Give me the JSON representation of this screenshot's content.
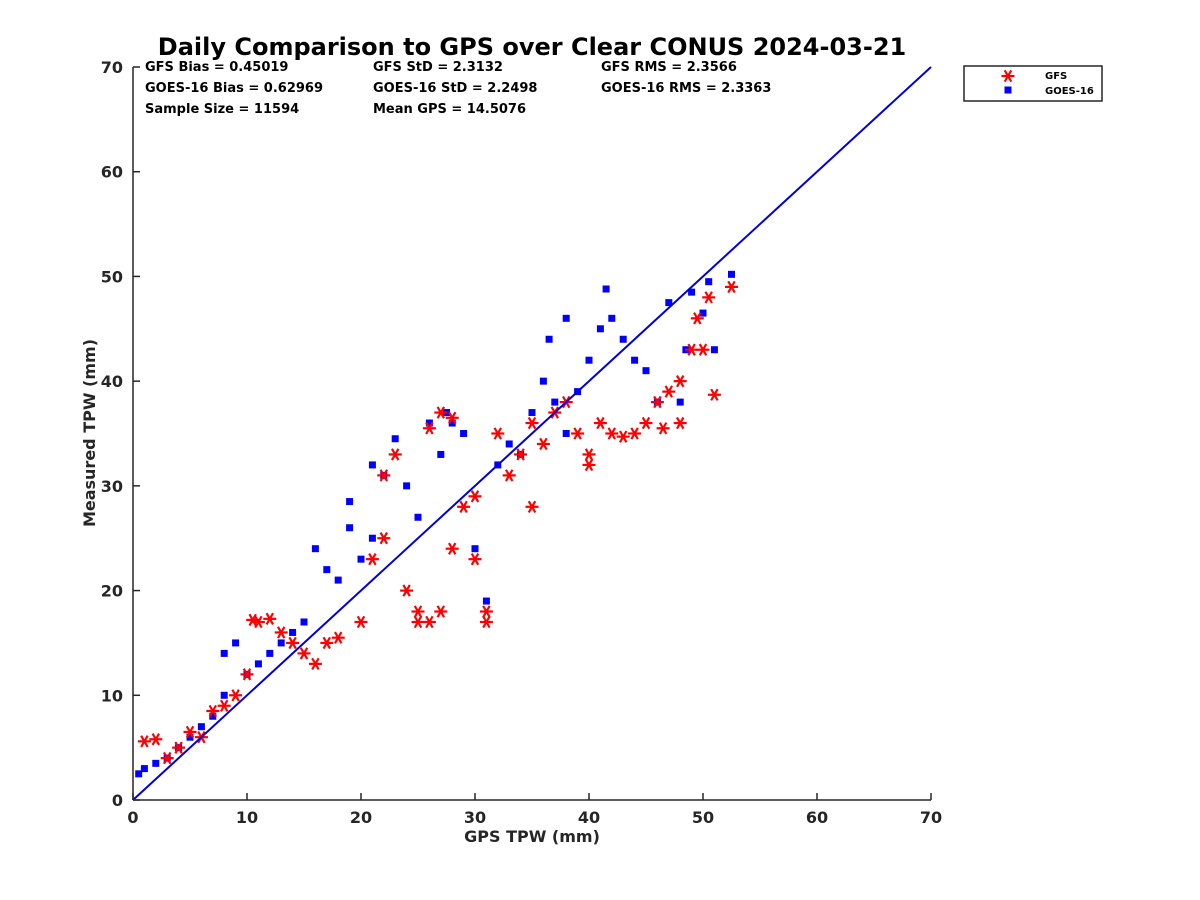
{
  "chart_data": {
    "type": "scatter",
    "title": "Daily Comparison to GPS over Clear CONUS 2024-03-21",
    "xlabel": "GPS TPW (mm)",
    "ylabel": "Measured TPW (mm)",
    "xlim": [
      0,
      70
    ],
    "ylim": [
      0,
      70
    ],
    "xticks": [
      "0",
      "10",
      "20",
      "30",
      "40",
      "50",
      "60",
      "70"
    ],
    "yticks": [
      "0",
      "10",
      "20",
      "30",
      "40",
      "50",
      "60",
      "70"
    ],
    "legend_position": "outside-top-right",
    "stats": {
      "gfs_bias": "GFS Bias = 0.45019",
      "gfs_std": "GFS StD = 2.3132",
      "gfs_rms": "GFS RMS = 2.3566",
      "goes_bias": "GOES-16 Bias = 0.62969",
      "goes_std": "GOES-16 StD = 2.2498",
      "goes_rms": "GOES-16 RMS = 2.3363",
      "sample_size": "Sample Size = 11594",
      "mean_gps": "Mean GPS = 14.5076"
    },
    "reference_line": {
      "name": "1:1 line",
      "points": [
        [
          0,
          0
        ],
        [
          70,
          70
        ]
      ],
      "color": "#0000dd"
    },
    "series": [
      {
        "name": "GFS",
        "marker": "asterisk",
        "color": "#ff0000",
        "points": [
          [
            1,
            5.6
          ],
          [
            2,
            5.8
          ],
          [
            3,
            4
          ],
          [
            4,
            5
          ],
          [
            5,
            6.5
          ],
          [
            6,
            6
          ],
          [
            7,
            8.5
          ],
          [
            8,
            9
          ],
          [
            9,
            10
          ],
          [
            10,
            12
          ],
          [
            10.5,
            17.2
          ],
          [
            11,
            17
          ],
          [
            12,
            17.3
          ],
          [
            13,
            16
          ],
          [
            14,
            15
          ],
          [
            15,
            14
          ],
          [
            16,
            13
          ],
          [
            17,
            15
          ],
          [
            18,
            15.5
          ],
          [
            20,
            17
          ],
          [
            21,
            23
          ],
          [
            22,
            25
          ],
          [
            22,
            31
          ],
          [
            23,
            33
          ],
          [
            24,
            20
          ],
          [
            25,
            18
          ],
          [
            25,
            17
          ],
          [
            26,
            17
          ],
          [
            26,
            35.5
          ],
          [
            27,
            37
          ],
          [
            27,
            18
          ],
          [
            28,
            24
          ],
          [
            28,
            36.5
          ],
          [
            29,
            28
          ],
          [
            30,
            29
          ],
          [
            30,
            23
          ],
          [
            31,
            17
          ],
          [
            31,
            18
          ],
          [
            32,
            35
          ],
          [
            33,
            31
          ],
          [
            34,
            33
          ],
          [
            35,
            28
          ],
          [
            35,
            36
          ],
          [
            36,
            34
          ],
          [
            37,
            37
          ],
          [
            38,
            38
          ],
          [
            39,
            35
          ],
          [
            40,
            33
          ],
          [
            40,
            32
          ],
          [
            41,
            36
          ],
          [
            42,
            35
          ],
          [
            43,
            34.7
          ],
          [
            44,
            35
          ],
          [
            45,
            36
          ],
          [
            46,
            38
          ],
          [
            46.5,
            35.5
          ],
          [
            47,
            39
          ],
          [
            48,
            36
          ],
          [
            48,
            40
          ],
          [
            49,
            43
          ],
          [
            49.5,
            46
          ],
          [
            50,
            43
          ],
          [
            50.5,
            48
          ],
          [
            51,
            38.7
          ],
          [
            52.5,
            49
          ]
        ]
      },
      {
        "name": "GOES-16",
        "marker": "square",
        "color": "#0000ff",
        "points": [
          [
            0.5,
            2.5
          ],
          [
            1,
            3
          ],
          [
            2,
            3.5
          ],
          [
            3,
            4
          ],
          [
            4,
            5
          ],
          [
            5,
            6
          ],
          [
            6,
            7
          ],
          [
            7,
            8
          ],
          [
            8,
            10
          ],
          [
            8,
            14
          ],
          [
            9,
            15
          ],
          [
            10,
            12
          ],
          [
            11,
            13
          ],
          [
            12,
            14
          ],
          [
            13,
            15
          ],
          [
            14,
            16
          ],
          [
            15,
            17
          ],
          [
            16,
            24
          ],
          [
            17,
            22
          ],
          [
            18,
            21
          ],
          [
            19,
            26
          ],
          [
            19,
            28.5
          ],
          [
            20,
            23
          ],
          [
            21,
            25
          ],
          [
            21,
            32
          ],
          [
            22,
            31
          ],
          [
            23,
            34.5
          ],
          [
            24,
            30
          ],
          [
            25,
            27
          ],
          [
            26,
            36
          ],
          [
            27,
            33
          ],
          [
            27.5,
            37
          ],
          [
            28,
            36
          ],
          [
            29,
            35
          ],
          [
            30,
            24
          ],
          [
            31,
            19
          ],
          [
            32,
            32
          ],
          [
            33,
            34
          ],
          [
            34,
            33
          ],
          [
            35,
            37
          ],
          [
            36,
            40
          ],
          [
            36.5,
            44
          ],
          [
            37,
            38
          ],
          [
            38,
            35
          ],
          [
            38,
            46
          ],
          [
            39,
            39
          ],
          [
            40,
            42
          ],
          [
            41,
            45
          ],
          [
            41.5,
            48.8
          ],
          [
            42,
            46
          ],
          [
            43,
            44
          ],
          [
            44,
            42
          ],
          [
            45,
            41
          ],
          [
            46,
            38
          ],
          [
            47,
            47.5
          ],
          [
            48,
            38
          ],
          [
            48.5,
            43
          ],
          [
            49,
            48.5
          ],
          [
            50,
            46.5
          ],
          [
            50.5,
            49.5
          ],
          [
            51,
            43
          ],
          [
            52.5,
            50.2
          ]
        ]
      }
    ]
  }
}
